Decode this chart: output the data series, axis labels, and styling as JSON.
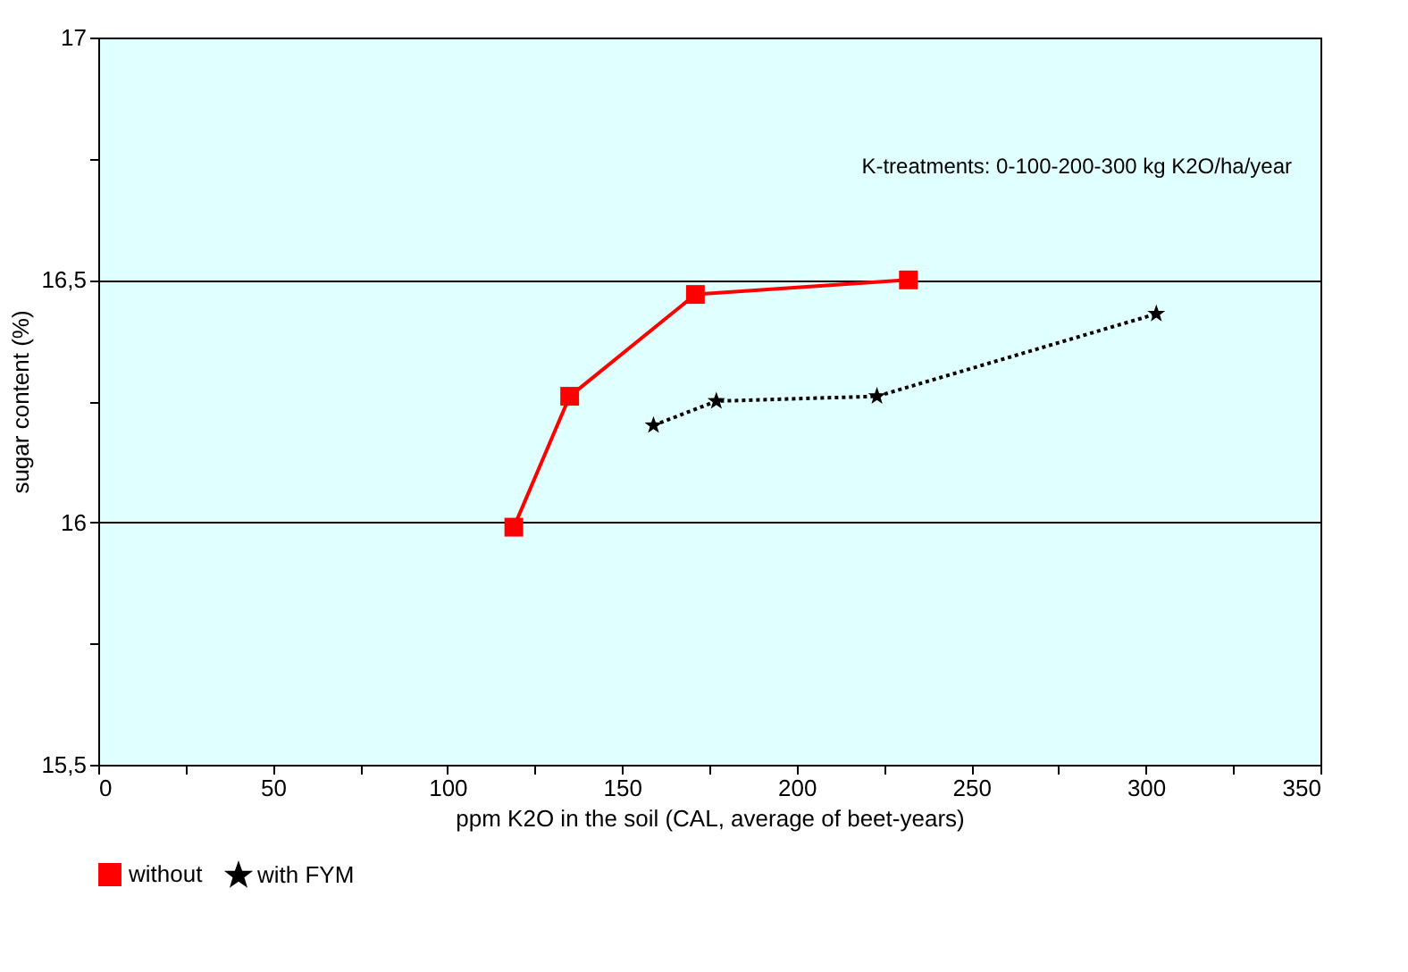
{
  "chart_data": {
    "type": "line",
    "xlabel": "ppm K2O in the soil   (CAL, average of beet-years)",
    "ylabel": "sugar content     (%)",
    "annotations": [
      "K-treatments: 0-100-200-300 kg K2O/ha/year"
    ],
    "series": [
      {
        "name": "without",
        "color": "#ff0000",
        "marker": "square",
        "line_style": "solid",
        "x": [
          119,
          135,
          171,
          232
        ],
        "values": [
          15.99,
          16.26,
          16.47,
          16.5
        ]
      },
      {
        "name": "with FYM",
        "color": "#000000",
        "marker": "star",
        "line_style": "dotted",
        "x": [
          159,
          177,
          223,
          303
        ],
        "values": [
          16.2,
          16.25,
          16.26,
          16.43
        ]
      }
    ],
    "xlim": [
      0,
      350
    ],
    "xticks": [
      0,
      {
        "value": 25,
        "label": null
      },
      50,
      {
        "value": 75,
        "label": null
      },
      100,
      {
        "value": 125,
        "label": null
      },
      150,
      {
        "value": 175,
        "label": null
      },
      200,
      {
        "value": 225,
        "label": null
      },
      250,
      {
        "value": 275,
        "label": null
      },
      300,
      {
        "value": 325,
        "label": null
      },
      350
    ],
    "ylim": [
      15.5,
      17
    ],
    "yticks": [
      {
        "value": 15.5,
        "label": "15,5"
      },
      {
        "value": 15.75,
        "label": null
      },
      16,
      {
        "value": 16.25,
        "label": null
      },
      {
        "value": 16.5,
        "label": "16,5"
      },
      {
        "value": 16.75,
        "label": null
      },
      17
    ],
    "grid": "y",
    "legend": "bottom"
  }
}
